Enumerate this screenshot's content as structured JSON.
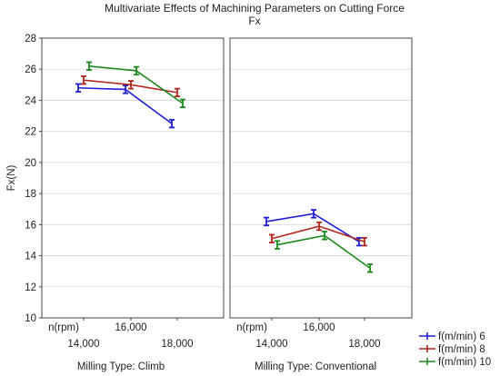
{
  "chart_data": {
    "type": "line",
    "title": "Multivariate Effects of Machining Parameters on Cutting Force",
    "subtitle": "Fx",
    "ylabel": "Fx(N)",
    "ylim": [
      10,
      28
    ],
    "yticks": [
      10,
      12,
      14,
      16,
      18,
      20,
      22,
      24,
      26,
      28
    ],
    "x_factor_label": "n(rpm)",
    "categories": [
      "14,000",
      "16,000",
      "18,000"
    ],
    "panels": [
      {
        "label": "Milling Type: Climb",
        "series": [
          {
            "name": "f(m/min) 6",
            "color": "#1f1fd6",
            "values": [
              24.8,
              24.7,
              22.5
            ],
            "err": [
              0.25,
              0.25,
              0.25
            ]
          },
          {
            "name": "f(m/min) 8",
            "color": "#b3261e",
            "values": [
              25.3,
              25.0,
              24.5
            ],
            "err": [
              0.25,
              0.25,
              0.25
            ]
          },
          {
            "name": "f(m/min) 10",
            "color": "#1d8a1d",
            "values": [
              26.2,
              25.9,
              23.8
            ],
            "err": [
              0.25,
              0.25,
              0.25
            ]
          }
        ]
      },
      {
        "label": "Milling Type: Conventional",
        "series": [
          {
            "name": "f(m/min) 6",
            "color": "#1f1fd6",
            "values": [
              16.2,
              16.7,
              14.9
            ],
            "err": [
              0.25,
              0.25,
              0.25
            ]
          },
          {
            "name": "f(m/min) 8",
            "color": "#b3261e",
            "values": [
              15.1,
              15.9,
              14.9
            ],
            "err": [
              0.25,
              0.25,
              0.25
            ]
          },
          {
            "name": "f(m/min) 10",
            "color": "#1d8a1d",
            "values": [
              14.7,
              15.3,
              13.2
            ],
            "err": [
              0.25,
              0.25,
              0.25
            ]
          }
        ]
      }
    ],
    "legend": {
      "position": "bottom-right",
      "entries": [
        "f(m/min) 6",
        "f(m/min) 8",
        "f(m/min) 10"
      ]
    },
    "grid": true
  }
}
